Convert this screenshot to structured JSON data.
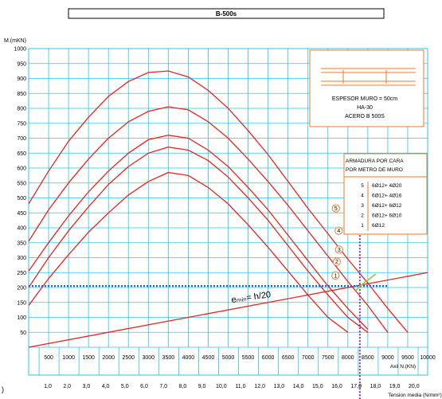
{
  "chart_data": {
    "type": "line",
    "title": "B-500s",
    "ylabel": "M.(mKN)",
    "xlabel": "Axil N.(KN)",
    "x2label": "Tension media (N/mm²)",
    "xlim": [
      0,
      10000
    ],
    "ylim": [
      0,
      1000
    ],
    "x_ticks": [
      500,
      1000,
      1500,
      2000,
      2500,
      3000,
      3500,
      4000,
      4500,
      5000,
      5500,
      6000,
      6500,
      7000,
      7500,
      8000,
      8500,
      9000,
      9500,
      10000
    ],
    "y_ticks": [
      50,
      100,
      150,
      200,
      250,
      300,
      350,
      400,
      450,
      500,
      550,
      600,
      650,
      700,
      750,
      800,
      850,
      900,
      950,
      1000
    ],
    "x2_ticks": [
      "1,0",
      "2,0",
      "3,0",
      "4,0",
      "5,0",
      "6,0",
      "7,0",
      "8,0",
      "9,0",
      "10,0",
      "11,0",
      "12,0",
      "13,0",
      "14,0",
      "15,0",
      "16,0",
      "17,0",
      "18,0",
      "19,0",
      "20,0"
    ],
    "grid": true,
    "series": [
      {
        "name": "1",
        "x": [
          0,
          500,
          1000,
          1500,
          2000,
          2500,
          3000,
          3500,
          4000,
          4500,
          5000,
          5500,
          6000,
          6500,
          7000,
          7500,
          8000
        ],
        "y": [
          140,
          230,
          310,
          385,
          450,
          510,
          555,
          585,
          575,
          535,
          480,
          410,
          335,
          255,
          175,
          100,
          50
        ]
      },
      {
        "name": "2",
        "x": [
          0,
          500,
          1000,
          1500,
          2000,
          2500,
          3000,
          3500,
          4000,
          4500,
          5000,
          5500,
          6000,
          6500,
          7000,
          7500,
          8000,
          8500
        ],
        "y": [
          200,
          300,
          390,
          470,
          545,
          605,
          650,
          670,
          660,
          625,
          570,
          500,
          425,
          340,
          255,
          175,
          100,
          50
        ]
      },
      {
        "name": "3",
        "x": [
          0,
          500,
          1000,
          1500,
          2000,
          2500,
          3000,
          3500,
          4000,
          4500,
          5000,
          5500,
          6000,
          6500,
          7000,
          7500,
          8000,
          8500
        ],
        "y": [
          255,
          350,
          440,
          520,
          590,
          650,
          695,
          710,
          700,
          660,
          605,
          535,
          460,
          375,
          290,
          205,
          130,
          60
        ]
      },
      {
        "name": "4",
        "x": [
          0,
          500,
          1000,
          1500,
          2000,
          2500,
          3000,
          3500,
          4000,
          4500,
          5000,
          5500,
          6000,
          6500,
          7000,
          7500,
          8000,
          8500,
          9000
        ],
        "y": [
          355,
          460,
          550,
          630,
          700,
          755,
          790,
          805,
          795,
          755,
          700,
          630,
          555,
          475,
          390,
          305,
          220,
          140,
          50
        ]
      },
      {
        "name": "5",
        "x": [
          0,
          500,
          1000,
          1500,
          2000,
          2500,
          3000,
          3500,
          4000,
          4500,
          5000,
          5500,
          6000,
          6500,
          7000,
          7500,
          8000,
          8500,
          9000,
          9500
        ],
        "y": [
          480,
          590,
          690,
          770,
          840,
          890,
          920,
          925,
          905,
          860,
          800,
          725,
          645,
          555,
          465,
          380,
          295,
          215,
          130,
          50
        ]
      }
    ],
    "emin_line": {
      "x": [
        0,
        10000
      ],
      "y": [
        0,
        250
      ],
      "label": "eₘᵢₙ= h/20"
    },
    "reference": {
      "h_y": 205,
      "v_x": 8300
    }
  },
  "info_box": {
    "line1": "ESPESOR MURO = 50cm",
    "line2": "HA-30",
    "line3": "ACERO B 500S"
  },
  "legend_box": {
    "title1": "ARMADURA POR CARA",
    "title2": "POR METRO DE MURO",
    "rows": [
      {
        "num": "5",
        "desc": "6Ø12+ 4Ø20"
      },
      {
        "num": "4",
        "desc": "6Ø12+ 4Ø16"
      },
      {
        "num": "3",
        "desc": "6Ø12+ 6Ø12"
      },
      {
        "num": "2",
        "desc": "6Ø12+ 6Ø10"
      },
      {
        "num": "1",
        "desc": "6Ø12"
      }
    ]
  },
  "colors": {
    "grid": "#29c6e8",
    "curve": "#e8241f",
    "box": "#f07a2a",
    "ref_h": "#1767d6",
    "ref_v": "#7b2fa8",
    "marker": "#7dd13a"
  }
}
